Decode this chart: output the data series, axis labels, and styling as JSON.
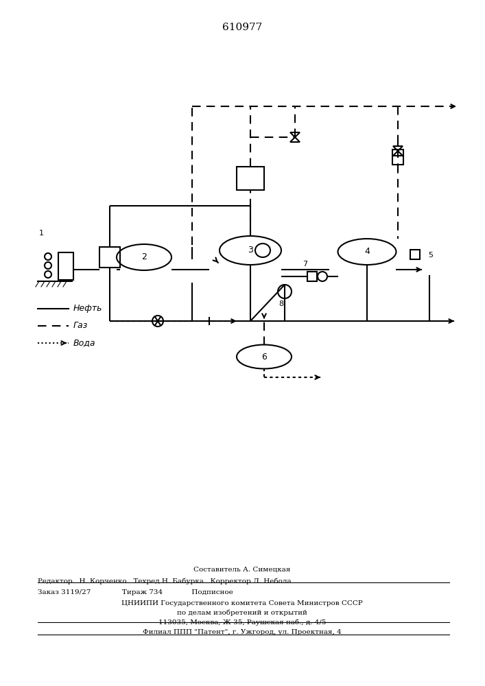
{
  "title": "610977",
  "title_fontsize": 11,
  "background_color": "#ffffff",
  "line_color": "#000000",
  "line_width": 1.5,
  "footer_lines": [
    "Составитель А. Симецкая",
    "Редактор   Н. Корченко   Техред Н. Бабурка   Корректор Л. Небола",
    "Заказ 3119/27              Тираж 734             Подписное",
    "ЦНИИПИ Государственного комитета Совета Министров СССР",
    "по делам изобретений и открытий",
    "113035, Москва, Ж-35, Раушская наб., д. 4/5",
    "Филиал ППП \"Патент\", г. Ужгород, ул. Проектная, 4"
  ],
  "legend_items": [
    {
      "label": "Нефть",
      "style": "solid"
    },
    {
      "label": "Газ",
      "style": "dashed"
    },
    {
      "label": "Вода",
      "style": "dotted_arrow"
    }
  ]
}
